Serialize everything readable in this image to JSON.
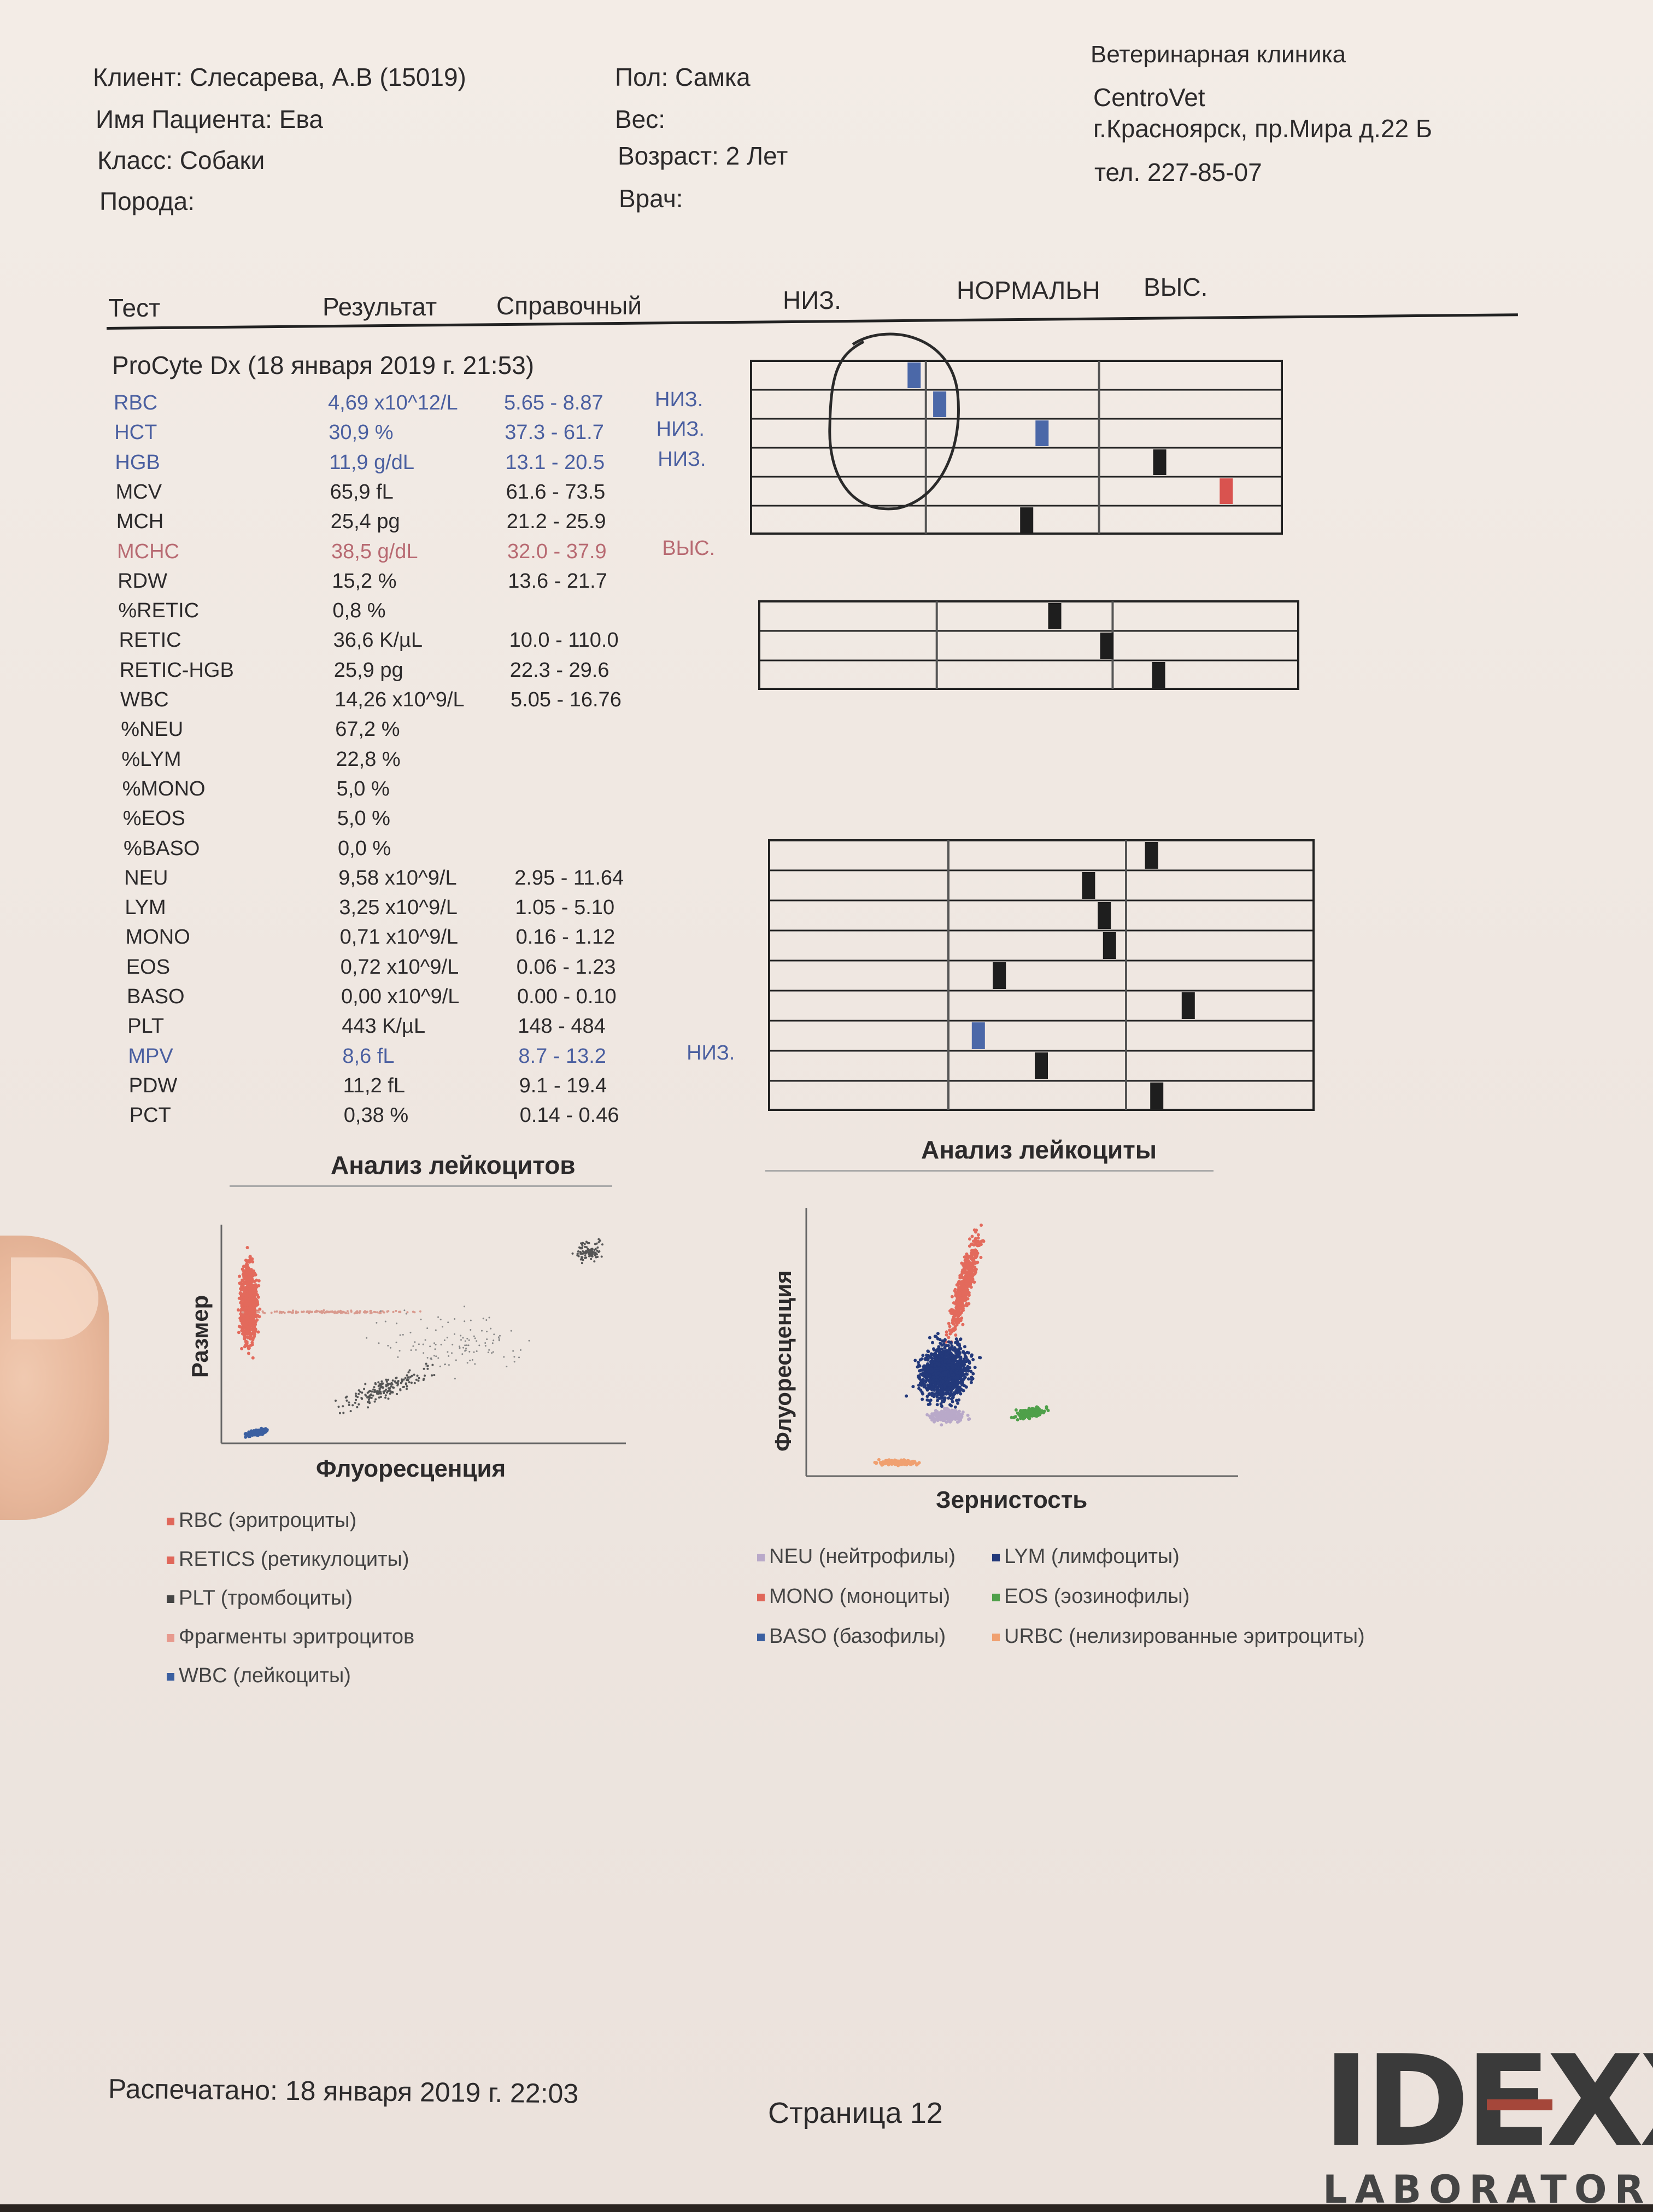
{
  "client": {
    "client_line": "Клиент: Слесарева, А.В (15019)",
    "patient_line": "Имя Пациента: Ева",
    "class_line": "Класс: Собаки",
    "breed_line": "Порода:",
    "sex_line": "Пол: Самка",
    "weight_line": "Вес:",
    "age_line": "Возраст: 2 Лет",
    "doctor_line": "Врач:"
  },
  "clinic": {
    "line1": "Ветеринарная клиника",
    "line2": "CentroVet",
    "line3": "г.Красноярск, пр.Мира д.22 Б",
    "line4": "тел. 227-85-07"
  },
  "table_header": {
    "test": "Тест",
    "result": "Результат",
    "reference": "Справочный",
    "low": "НИЗ.",
    "normal": "НОРМАЛЬН",
    "high": "ВЫС."
  },
  "instrument_line": "ProCyte Dx (18 января 2019 г. 21:53)",
  "rows": [
    {
      "name": "RBC",
      "result": "4,69 x10^12/L",
      "ref": "5.65 - 8.87",
      "flag": "НИЗ."
    },
    {
      "name": "HCT",
      "result": "30,9 %",
      "ref": "37.3 - 61.7",
      "flag": "НИЗ."
    },
    {
      "name": "HGB",
      "result": "11,9 g/dL",
      "ref": "13.1 - 20.5",
      "flag": "НИЗ."
    },
    {
      "name": "MCV",
      "result": "65,9 fL",
      "ref": "61.6 - 73.5",
      "flag": ""
    },
    {
      "name": "MCH",
      "result": "25,4 pg",
      "ref": "21.2 - 25.9",
      "flag": ""
    },
    {
      "name": "MCHC",
      "result": "38,5 g/dL",
      "ref": "32.0 - 37.9",
      "flag": "ВЫС."
    },
    {
      "name": "RDW",
      "result": "15,2 %",
      "ref": "13.6 - 21.7",
      "flag": ""
    },
    {
      "name": "%RETIC",
      "result": "0,8 %",
      "ref": "",
      "flag": ""
    },
    {
      "name": "RETIC",
      "result": "36,6 K/µL",
      "ref": "10.0 - 110.0",
      "flag": ""
    },
    {
      "name": "RETIC-HGB",
      "result": "25,9 pg",
      "ref": "22.3 - 29.6",
      "flag": ""
    },
    {
      "name": "WBC",
      "result": "14,26 x10^9/L",
      "ref": "5.05 - 16.76",
      "flag": ""
    },
    {
      "name": "%NEU",
      "result": "67,2 %",
      "ref": "",
      "flag": ""
    },
    {
      "name": "%LYM",
      "result": "22,8 %",
      "ref": "",
      "flag": ""
    },
    {
      "name": "%MONO",
      "result": "5,0 %",
      "ref": "",
      "flag": ""
    },
    {
      "name": "%EOS",
      "result": "5,0 %",
      "ref": "",
      "flag": ""
    },
    {
      "name": "%BASO",
      "result": "0,0 %",
      "ref": "",
      "flag": ""
    },
    {
      "name": "NEU",
      "result": "9,58 x10^9/L",
      "ref": "2.95 - 11.64",
      "flag": ""
    },
    {
      "name": "LYM",
      "result": "3,25 x10^9/L",
      "ref": "1.05 - 5.10",
      "flag": ""
    },
    {
      "name": "MONO",
      "result": "0,71 x10^9/L",
      "ref": "0.16 - 1.12",
      "flag": ""
    },
    {
      "name": "EOS",
      "result": "0,72 x10^9/L",
      "ref": "0.06 - 1.23",
      "flag": ""
    },
    {
      "name": "BASO",
      "result": "0,00 x10^9/L",
      "ref": "0.00 - 0.10",
      "flag": ""
    },
    {
      "name": "PLT",
      "result": "443 K/µL",
      "ref": "148 - 484",
      "flag": ""
    },
    {
      "name": "MPV",
      "result": "8,6 fL",
      "ref": "8.7 - 13.2",
      "flag": "НИЗ."
    },
    {
      "name": "PDW",
      "result": "11,2 fL",
      "ref": "9.1 - 19.4",
      "flag": ""
    },
    {
      "name": "PCT",
      "result": "0,38 %",
      "ref": "0.14 - 0.46",
      "flag": ""
    }
  ],
  "bars": {
    "group1": [
      0.3,
      0.35,
      0.55,
      0.78,
      0.91,
      0.52
    ],
    "group2": [
      0.55,
      0.65,
      0.75
    ],
    "group3": [
      0.71,
      0.59,
      0.62,
      0.63,
      0.42,
      0.78,
      0.38,
      0.5,
      0.72
    ]
  },
  "bar_colors": {
    "low": "#4b68a8",
    "normal": "#1e1e1e",
    "high": "#d9534f",
    "low_rbc": "#4b68a8"
  },
  "plots": {
    "left_title": "Анализ лейкоцитов",
    "left_xlabel": "Флуоресценция",
    "left_ylabel": "Размер",
    "right_title": "Анализ лейкоциты",
    "right_xlabel": "Зернистость",
    "right_ylabel": "Флуоресценция"
  },
  "legend_left": [
    {
      "text": "RBC (эритроциты)",
      "color": "#e0675a"
    },
    {
      "text": "RETICS (ретикулоциты)",
      "color": "#e0675a"
    },
    {
      "text": "PLT (тромбоциты)",
      "color": "#444444"
    },
    {
      "text": "Фрагменты эритроцитов",
      "color": "#e79a8e"
    },
    {
      "text": "WBC (лейкоциты)",
      "color": "#3b5fa0"
    }
  ],
  "legend_right": [
    {
      "text": "NEU (нейтрофилы)",
      "color": "#b9a9c9"
    },
    {
      "text": "LYM (лимфоциты)",
      "color": "#23397a"
    },
    {
      "text": "MONO (моноциты)",
      "color": "#e0675a"
    },
    {
      "text": "EOS (эозинофилы)",
      "color": "#4fa04a"
    },
    {
      "text": "BASO (базофилы)",
      "color": "#3b5fa0"
    },
    {
      "text": "URBC (нелизированные эритроциты)",
      "color": "#f0a070"
    }
  ],
  "footer": {
    "printed": "Распечатано: 18 января 2019 г. 22:03",
    "page": "Страница 12"
  },
  "logo": {
    "brand": "IDEXX",
    "sub": "LABORATORIE"
  }
}
